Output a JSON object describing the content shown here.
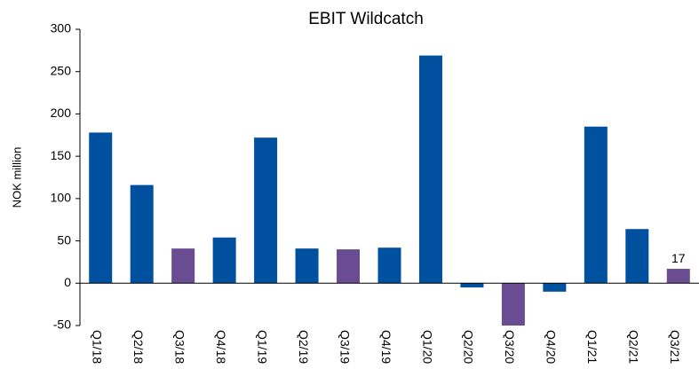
{
  "chart_data": {
    "type": "bar",
    "title": "EBIT Wildcatch",
    "y_label": "NOK million",
    "categories": [
      "Q1/18",
      "Q2/18",
      "Q3/18",
      "Q4/18",
      "Q1/19",
      "Q2/19",
      "Q3/19",
      "Q4/19",
      "Q1/20",
      "Q2/20",
      "Q3/20",
      "Q4/20",
      "Q1/21",
      "Q2/21",
      "Q3/21"
    ],
    "values": [
      178,
      116,
      41,
      54,
      172,
      41,
      40,
      42,
      269,
      -5,
      -50,
      -10,
      185,
      64,
      17
    ],
    "value_labels": [
      null,
      null,
      null,
      null,
      null,
      null,
      null,
      null,
      null,
      null,
      null,
      null,
      null,
      null,
      "17"
    ],
    "colors": [
      "#0050a0",
      "#0050a0",
      "#6a4c93",
      "#0050a0",
      "#0050a0",
      "#0050a0",
      "#6a4c93",
      "#0050a0",
      "#0050a0",
      "#0050a0",
      "#6a4c93",
      "#0050a0",
      "#0050a0",
      "#0050a0",
      "#6a4c93"
    ],
    "ylim": [
      -50,
      300
    ],
    "yticks": [
      -50,
      0,
      50,
      100,
      150,
      200,
      250,
      300
    ],
    "grid": false
  }
}
